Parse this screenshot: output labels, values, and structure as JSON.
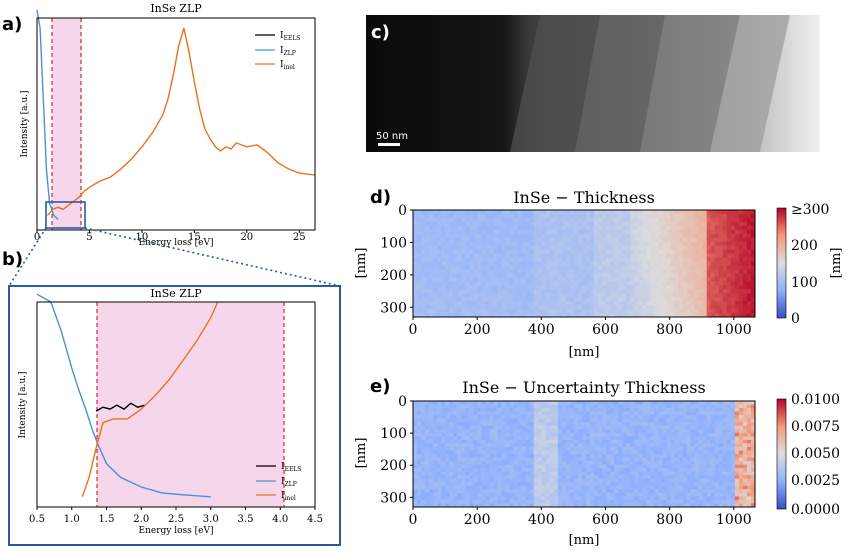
{
  "panels": {
    "a": {
      "letter": "a)",
      "title": "InSe ZLP",
      "xlabel": "Energy loss [eV]",
      "ylabel": "Intensity [a.u.]",
      "xticks": [
        "0",
        "5",
        "10",
        "15",
        "20",
        "25"
      ],
      "legend": [
        "I",
        "EELS",
        "I",
        "ZLP",
        "I",
        "inel"
      ]
    },
    "b": {
      "letter": "b)",
      "title": "InSe ZLP",
      "xlabel": "Energy loss [eV]",
      "ylabel": "Intensity [a.u.]",
      "xticks": [
        "0.5",
        "1.0",
        "1.5",
        "2.0",
        "2.5",
        "3.0",
        "3.5",
        "4.0",
        "4.5"
      ],
      "legend": [
        "I",
        "EELS",
        "I",
        "ZLP",
        "I",
        "inel"
      ]
    },
    "c": {
      "letter": "c)",
      "scalebar": "50 nm"
    },
    "d": {
      "letter": "d)",
      "title": "InSe − Thickness",
      "xlabel": "[nm]",
      "ylabel": "[nm]",
      "cbar_label": "[nm]",
      "xticks": [
        "0",
        "200",
        "400",
        "600",
        "800",
        "1000"
      ],
      "yticks": [
        "0",
        "100",
        "200",
        "300"
      ],
      "cbar_ticks": [
        "≥300",
        "200",
        "100",
        "0"
      ]
    },
    "e": {
      "letter": "e)",
      "title": "InSe − Uncertainty Thickness",
      "xlabel": "[nm]",
      "ylabel": "[nm]",
      "xticks": [
        "0",
        "200",
        "400",
        "600",
        "800",
        "1000"
      ],
      "yticks": [
        "0",
        "100",
        "200",
        "300"
      ],
      "cbar_ticks": [
        "0.0100",
        "0.0075",
        "0.0050",
        "0.0025",
        "0.0000"
      ]
    }
  },
  "colors": {
    "eels": "#000000",
    "zlp": "#4a90d9",
    "inel": "#e8731f",
    "window": "#f6d6ea",
    "window_line": "#d62728",
    "box": "#2b5aa3"
  },
  "chart_data": [
    {
      "type": "line",
      "panel": "a",
      "title": "InSe ZLP",
      "xlabel": "Energy loss [eV]",
      "ylabel": "Intensity [a.u.]",
      "xlim": [
        0,
        26.5
      ],
      "series": [
        {
          "name": "I_inel",
          "x": [
            1.0,
            1.5,
            2.0,
            2.5,
            3.0,
            3.5,
            4.0,
            4.5,
            5.0,
            6.0,
            7.0,
            8.0,
            9.0,
            10.0,
            11.0,
            12.0,
            12.5,
            13.0,
            13.5,
            14.0,
            14.5,
            15.0,
            15.5,
            16.0,
            16.5,
            17.0,
            17.5,
            18.0,
            18.5,
            19.0,
            20.0,
            21.0,
            22.0,
            23.0,
            24.0,
            25.0,
            26.5
          ],
          "y": [
            0.02,
            0.05,
            0.06,
            0.05,
            0.07,
            0.09,
            0.11,
            0.14,
            0.16,
            0.19,
            0.21,
            0.25,
            0.3,
            0.36,
            0.43,
            0.52,
            0.6,
            0.72,
            0.86,
            0.95,
            0.83,
            0.68,
            0.55,
            0.45,
            0.4,
            0.36,
            0.34,
            0.36,
            0.35,
            0.38,
            0.36,
            0.37,
            0.33,
            0.28,
            0.25,
            0.23,
            0.22
          ]
        },
        {
          "name": "I_ZLP",
          "x": [
            0.0,
            0.3,
            0.6,
            0.9,
            1.2,
            1.6,
            2.0
          ],
          "y": [
            1.05,
            0.95,
            0.6,
            0.25,
            0.08,
            0.02,
            0.0
          ]
        }
      ]
    },
    {
      "type": "line",
      "panel": "b",
      "title": "InSe ZLP",
      "xlabel": "Energy loss [eV]",
      "ylabel": "Intensity [a.u.]",
      "xlim": [
        0.5,
        4.5
      ],
      "series": [
        {
          "name": "I_EELS",
          "x": [
            1.35,
            1.45,
            1.55,
            1.65,
            1.75,
            1.85,
            1.95,
            2.05
          ],
          "y": [
            0.44,
            0.46,
            0.45,
            0.47,
            0.45,
            0.48,
            0.46,
            0.47
          ]
        },
        {
          "name": "I_ZLP",
          "x": [
            0.5,
            0.7,
            0.85,
            1.0,
            1.1,
            1.2,
            1.3,
            1.4,
            1.5,
            1.7,
            2.0,
            2.3,
            2.6,
            3.0
          ],
          "y": [
            1.05,
            1.0,
            0.85,
            0.66,
            0.55,
            0.45,
            0.34,
            0.25,
            0.17,
            0.1,
            0.05,
            0.02,
            0.01,
            0.0
          ]
        },
        {
          "name": "I_inel",
          "x": [
            1.15,
            1.25,
            1.35,
            1.45,
            1.6,
            1.8,
            2.0,
            2.2,
            2.4,
            2.6,
            2.8,
            3.0,
            3.1
          ],
          "y": [
            0.0,
            0.1,
            0.25,
            0.38,
            0.4,
            0.4,
            0.45,
            0.52,
            0.6,
            0.7,
            0.8,
            0.92,
            1.0
          ]
        }
      ],
      "window": [
        1.35,
        4.05
      ]
    }
  ]
}
